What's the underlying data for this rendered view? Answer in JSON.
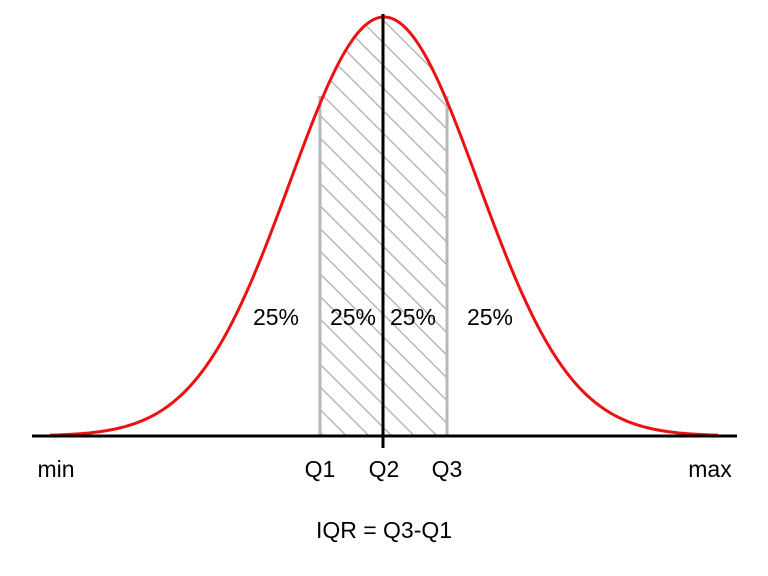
{
  "diagram": {
    "area_labels": [
      "25%",
      "25%",
      "25%",
      "25%"
    ],
    "axis_labels": {
      "min": "min",
      "q1": "Q1",
      "q2": "Q2",
      "q3": "Q3",
      "max": "max"
    },
    "formula": "IQR = Q3-Q1",
    "colors": {
      "curve": "#ee1111",
      "axis": "#000000",
      "hatch": "#b8b8b8",
      "text": "#000000"
    }
  }
}
